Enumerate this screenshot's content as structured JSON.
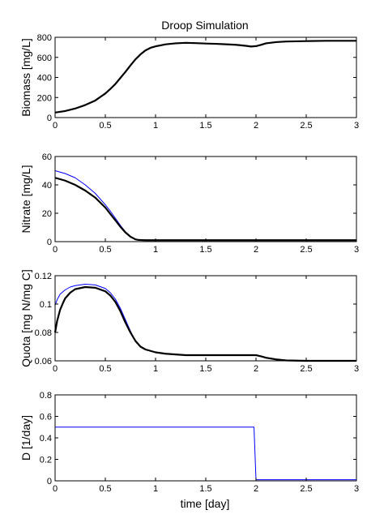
{
  "figure": {
    "title": "Droop Simulation",
    "xlabel": "time [day]"
  },
  "chart_data": [
    {
      "type": "line",
      "ylabel": "Biomass [mg/L]",
      "xlim": [
        0,
        3
      ],
      "ylim": [
        0,
        800
      ],
      "xticks": [
        0,
        0.5,
        1,
        1.5,
        2,
        2.5,
        3
      ],
      "xtick_labels": [
        "0",
        "0.5",
        "1",
        "1.5",
        "2",
        "2.5",
        "3"
      ],
      "yticks": [
        0,
        200,
        400,
        600,
        800
      ],
      "ytick_labels": [
        "0",
        "200",
        "400",
        "600",
        "800"
      ],
      "grid": false,
      "legend": "none",
      "series": [
        {
          "color": "#000000",
          "x": [
            0,
            0.1,
            0.2,
            0.3,
            0.4,
            0.5,
            0.55,
            0.6,
            0.65,
            0.7,
            0.75,
            0.8,
            0.85,
            0.9,
            0.95,
            1.0,
            1.05,
            1.1,
            1.2,
            1.3,
            1.4,
            1.5,
            1.6,
            1.7,
            1.8,
            1.9,
            1.95,
            2.0,
            2.05,
            2.1,
            2.2,
            2.3,
            2.5,
            2.7,
            3.0
          ],
          "y": [
            50,
            65,
            90,
            125,
            170,
            240,
            285,
            335,
            395,
            455,
            520,
            580,
            630,
            670,
            695,
            710,
            720,
            730,
            740,
            745,
            742,
            738,
            735,
            730,
            725,
            715,
            708,
            712,
            725,
            740,
            752,
            758,
            762,
            765,
            765
          ]
        }
      ]
    },
    {
      "type": "line",
      "ylabel": "Nitrate [mg/L]",
      "xlim": [
        0,
        3
      ],
      "ylim": [
        0,
        60
      ],
      "xticks": [
        0,
        0.5,
        1,
        1.5,
        2,
        2.5,
        3
      ],
      "xtick_labels": [
        "0",
        "0.5",
        "1",
        "1.5",
        "2",
        "2.5",
        "3"
      ],
      "yticks": [
        0,
        20,
        40,
        60
      ],
      "ytick_labels": [
        "0",
        "20",
        "40",
        "60"
      ],
      "grid": false,
      "legend": "none",
      "series": [
        {
          "color": "#0000ff",
          "x": [
            0,
            0.1,
            0.2,
            0.3,
            0.4,
            0.5,
            0.55,
            0.6,
            0.65,
            0.7,
            0.75,
            0.8,
            0.83,
            0.86,
            0.9,
            1.0,
            1.5,
            2.0,
            2.5,
            3.0
          ],
          "y": [
            50,
            48,
            45,
            40,
            34,
            26,
            21.5,
            16.5,
            11.5,
            7,
            3.5,
            1.6,
            1.2,
            1.1,
            1,
            1,
            1,
            1,
            1,
            1
          ]
        },
        {
          "color": "#000000",
          "x": [
            0,
            0.1,
            0.2,
            0.3,
            0.4,
            0.5,
            0.55,
            0.6,
            0.65,
            0.7,
            0.75,
            0.8,
            0.83,
            0.86,
            0.9,
            1.0,
            1.5,
            2.0,
            2.5,
            3.0
          ],
          "y": [
            45,
            43,
            40,
            36,
            31,
            24,
            19.5,
            15,
            10.5,
            6.5,
            3.5,
            1.6,
            1.2,
            1.1,
            1,
            1,
            1,
            1,
            1,
            1
          ]
        }
      ]
    },
    {
      "type": "line",
      "ylabel": "Quota [mg N/mg C]",
      "xlim": [
        0,
        3
      ],
      "ylim": [
        0.06,
        0.12
      ],
      "xticks": [
        0,
        0.5,
        1,
        1.5,
        2,
        2.5,
        3
      ],
      "xtick_labels": [
        "0",
        "0.5",
        "1",
        "1.5",
        "2",
        "2.5",
        "3"
      ],
      "yticks": [
        0.06,
        0.08,
        0.1,
        0.12
      ],
      "ytick_labels": [
        "0.06",
        "0.08",
        "0.1",
        "0.12"
      ],
      "grid": false,
      "legend": "none",
      "series": [
        {
          "color": "#0000ff",
          "x": [
            0,
            0.02,
            0.05,
            0.1,
            0.15,
            0.2,
            0.3,
            0.4,
            0.5,
            0.55,
            0.6,
            0.65,
            0.7,
            0.75,
            0.8,
            0.85,
            0.9,
            1.0,
            1.1,
            1.2,
            1.3
          ],
          "y": [
            0.099,
            0.103,
            0.107,
            0.11,
            0.112,
            0.113,
            0.114,
            0.1135,
            0.111,
            0.108,
            0.1035,
            0.097,
            0.089,
            0.081,
            0.074,
            0.07,
            0.068,
            0.066,
            0.065,
            0.0645,
            0.064
          ]
        },
        {
          "color": "#000000",
          "x": [
            0,
            0.02,
            0.05,
            0.08,
            0.1,
            0.15,
            0.2,
            0.3,
            0.4,
            0.5,
            0.55,
            0.6,
            0.65,
            0.7,
            0.75,
            0.8,
            0.85,
            0.9,
            1.0,
            1.1,
            1.2,
            1.3,
            1.5,
            1.8,
            2.0,
            2.05,
            2.1,
            2.2,
            2.3,
            2.5,
            2.8,
            3.0
          ],
          "y": [
            0.08,
            0.088,
            0.096,
            0.101,
            0.104,
            0.108,
            0.1105,
            0.112,
            0.1115,
            0.109,
            0.106,
            0.1015,
            0.095,
            0.087,
            0.08,
            0.074,
            0.07,
            0.068,
            0.066,
            0.065,
            0.0645,
            0.064,
            0.064,
            0.064,
            0.064,
            0.0632,
            0.0622,
            0.061,
            0.0603,
            0.06,
            0.06,
            0.06
          ]
        }
      ]
    },
    {
      "type": "line",
      "ylabel": "D [1/day]",
      "xlim": [
        0,
        3
      ],
      "ylim": [
        0,
        0.8
      ],
      "xticks": [
        0,
        0.5,
        1,
        1.5,
        2,
        2.5,
        3
      ],
      "xtick_labels": [
        "0",
        "0.5",
        "1",
        "1.5",
        "2",
        "2.5",
        "3"
      ],
      "yticks": [
        0,
        0.2,
        0.4,
        0.6,
        0.8
      ],
      "ytick_labels": [
        "0",
        "0.2",
        "0.4",
        "0.6",
        "0.8"
      ],
      "grid": false,
      "legend": "none",
      "series": [
        {
          "color": "#0000ff",
          "x": [
            0,
            1.98,
            2.0,
            3.0
          ],
          "y": [
            0.5,
            0.5,
            0.01,
            0.01
          ]
        }
      ]
    }
  ]
}
